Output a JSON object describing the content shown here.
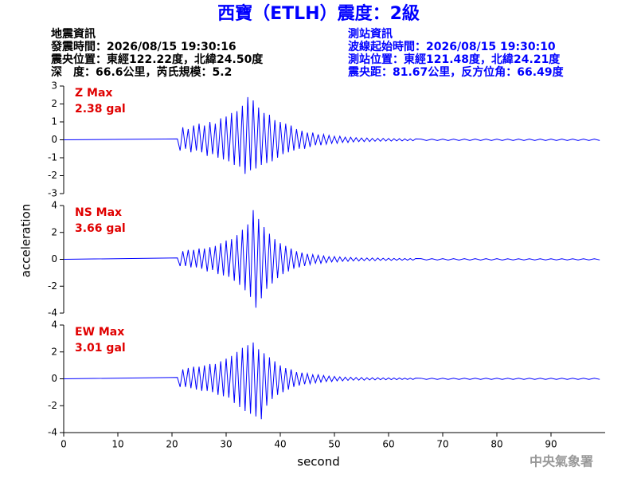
{
  "title": "西寶（ETLH）震度：2級",
  "event_info": [
    "地震資訊",
    "發震時間：2026/08/15 19:30:16",
    "震央位置：東經122.22度，北緯24.50度",
    "深　度：66.6公里，芮氏規模：5.2"
  ],
  "station_info": [
    "測站資訊",
    "波線起始時間：2026/08/15 19:30:10",
    "測站位置：東經121.48度，北緯24.21度",
    "震央距：81.67公里，反方位角：66.49度"
  ],
  "y_label": "acceleration",
  "x_label": "second",
  "watermark": "中央氣象署",
  "chart_data": [
    {
      "type": "line",
      "label": "Z Max",
      "max_label": "2.38 gal",
      "color": "#0000ff",
      "label_color": "#e00000",
      "xlim": [
        0,
        100
      ],
      "ylim": [
        -3,
        3
      ],
      "yticks": [
        -3,
        -2,
        -1,
        0,
        1,
        2,
        3
      ],
      "x": [
        0,
        21,
        21.5,
        22,
        22.5,
        23,
        23.5,
        24,
        24.5,
        25,
        25.5,
        26,
        26.5,
        27,
        27.5,
        28,
        28.5,
        29,
        29.5,
        30,
        30.5,
        31,
        31.5,
        32,
        32.5,
        33,
        33.5,
        34,
        34.5,
        35,
        35.5,
        36,
        36.5,
        37,
        37.5,
        38,
        38.5,
        39,
        39.5,
        40,
        40.5,
        41,
        41.5,
        42,
        42.5,
        43,
        43.5,
        44,
        44.5,
        45,
        45.5,
        46,
        46.5,
        47,
        47.5,
        48,
        48.5,
        49,
        49.5,
        50,
        50.5,
        51,
        51.5,
        52,
        52.5,
        53,
        53.5,
        54,
        54.5,
        55,
        55.5,
        56,
        56.5,
        57,
        57.5,
        58,
        58.5,
        59,
        59.5,
        60,
        60.5,
        61,
        61.5,
        62,
        62.5,
        63,
        63.5,
        64,
        64.5,
        65,
        66,
        67,
        68,
        69,
        70,
        71,
        72,
        73,
        74,
        75,
        76,
        77,
        78,
        79,
        80,
        81,
        82,
        83,
        84,
        85,
        86,
        87,
        88,
        89,
        90,
        91,
        92,
        93,
        94,
        95,
        96,
        97,
        98,
        99
      ],
      "values": [
        0,
        0.05,
        -0.6,
        0.7,
        -0.5,
        0.6,
        -0.7,
        0.8,
        -0.6,
        0.9,
        -0.7,
        0.8,
        -0.9,
        1.0,
        -0.8,
        0.9,
        -1.0,
        1.2,
        -1.1,
        1.3,
        -1.2,
        1.5,
        -1.4,
        1.6,
        -1.5,
        1.9,
        -1.9,
        2.38,
        -1.7,
        2.2,
        -1.6,
        1.8,
        -1.4,
        1.5,
        -1.3,
        1.4,
        -1.2,
        1.1,
        -1.0,
        1.0,
        -0.8,
        0.9,
        -0.7,
        0.8,
        -0.6,
        0.6,
        -0.5,
        0.5,
        -0.5,
        0.4,
        -0.4,
        0.4,
        -0.3,
        0.3,
        -0.3,
        0.3,
        -0.25,
        0.25,
        -0.2,
        0.2,
        -0.2,
        0.2,
        -0.15,
        0.15,
        -0.15,
        0.15,
        -0.12,
        0.12,
        -0.1,
        0.1,
        -0.1,
        0.1,
        -0.1,
        0.08,
        -0.08,
        0.08,
        -0.08,
        0.08,
        -0.07,
        0.07,
        -0.07,
        0.06,
        -0.06,
        0.06,
        -0.06,
        0.05,
        -0.05,
        0.05,
        -0.05,
        0.05,
        0.04,
        -0.04,
        0.04,
        -0.04,
        0.04,
        -0.04,
        0.04,
        -0.04,
        0.04,
        -0.04,
        0.04,
        -0.04,
        0.04,
        -0.04,
        0.04,
        -0.04,
        0.04,
        -0.04,
        0.04,
        -0.04,
        0.04,
        -0.04,
        0.04,
        -0.04,
        0.04,
        -0.04,
        0.04,
        -0.04,
        0.04,
        -0.04,
        0.04,
        -0.04,
        0.04,
        -0.04
      ]
    },
    {
      "type": "line",
      "label": "NS Max",
      "max_label": "3.66 gal",
      "color": "#0000ff",
      "label_color": "#e00000",
      "xlim": [
        0,
        100
      ],
      "ylim": [
        -4,
        4
      ],
      "yticks": [
        -4,
        -2,
        0,
        2,
        4
      ],
      "x": [
        0,
        21,
        21.5,
        22,
        22.5,
        23,
        23.5,
        24,
        24.5,
        25,
        25.5,
        26,
        26.5,
        27,
        27.5,
        28,
        28.5,
        29,
        29.5,
        30,
        30.5,
        31,
        31.5,
        32,
        32.5,
        33,
        33.5,
        34,
        34.5,
        35,
        35.5,
        36,
        36.5,
        37,
        37.5,
        38,
        38.5,
        39,
        39.5,
        40,
        40.5,
        41,
        41.5,
        42,
        42.5,
        43,
        43.5,
        44,
        44.5,
        45,
        45.5,
        46,
        46.5,
        47,
        47.5,
        48,
        48.5,
        49,
        49.5,
        50,
        50.5,
        51,
        51.5,
        52,
        52.5,
        53,
        53.5,
        54,
        54.5,
        55,
        55.5,
        56,
        56.5,
        57,
        57.5,
        58,
        58.5,
        59,
        59.5,
        60,
        60.5,
        61,
        61.5,
        62,
        62.5,
        63,
        63.5,
        64,
        64.5,
        65,
        66,
        67,
        68,
        69,
        70,
        71,
        72,
        73,
        74,
        75,
        76,
        77,
        78,
        79,
        80,
        81,
        82,
        83,
        84,
        85,
        86,
        87,
        88,
        89,
        90,
        91,
        92,
        93,
        94,
        95,
        96,
        97,
        98,
        99
      ],
      "values": [
        0,
        0.1,
        -0.5,
        0.6,
        -0.5,
        0.7,
        -0.6,
        0.7,
        -0.6,
        0.8,
        -0.7,
        0.8,
        -0.9,
        0.9,
        -0.8,
        1.0,
        -1.1,
        1.2,
        -1.2,
        1.4,
        -1.3,
        1.5,
        -1.6,
        1.8,
        -1.9,
        2.2,
        -2.3,
        2.6,
        -2.8,
        3.66,
        -3.6,
        3.0,
        -2.9,
        2.4,
        -2.2,
        1.9,
        -1.8,
        1.5,
        -1.4,
        1.2,
        -1.1,
        1.0,
        -0.9,
        0.8,
        -0.7,
        0.6,
        -0.6,
        0.5,
        -0.5,
        0.4,
        -0.4,
        0.35,
        -0.3,
        0.3,
        -0.3,
        0.25,
        -0.25,
        0.2,
        -0.2,
        0.2,
        -0.2,
        0.18,
        -0.15,
        0.15,
        -0.15,
        0.14,
        -0.12,
        0.12,
        -0.12,
        0.1,
        -0.1,
        0.1,
        -0.1,
        0.1,
        -0.1,
        0.1,
        -0.08,
        0.08,
        -0.08,
        0.08,
        -0.08,
        0.07,
        -0.07,
        0.07,
        -0.07,
        0.06,
        -0.06,
        0.06,
        -0.06,
        0.06,
        0.05,
        -0.05,
        0.05,
        -0.05,
        0.05,
        -0.05,
        0.05,
        -0.05,
        0.05,
        -0.05,
        0.05,
        -0.05,
        0.05,
        -0.05,
        0.05,
        -0.05,
        0.04,
        -0.04,
        0.04,
        -0.04,
        0.04,
        -0.04,
        0.04,
        -0.04,
        0.04,
        -0.04,
        0.04,
        -0.04,
        0.04,
        -0.04,
        0.04,
        -0.04,
        0.04,
        -0.04
      ]
    },
    {
      "type": "line",
      "label": "EW Max",
      "max_label": "3.01 gal",
      "color": "#0000ff",
      "label_color": "#e00000",
      "xlim": [
        0,
        100
      ],
      "ylim": [
        -4,
        4
      ],
      "yticks": [
        -4,
        -2,
        0,
        2,
        4
      ],
      "xticks": [
        0,
        10,
        20,
        30,
        40,
        50,
        60,
        70,
        80,
        90
      ],
      "x": [
        0,
        21,
        21.5,
        22,
        22.5,
        23,
        23.5,
        24,
        24.5,
        25,
        25.5,
        26,
        26.5,
        27,
        27.5,
        28,
        28.5,
        29,
        29.5,
        30,
        30.5,
        31,
        31.5,
        32,
        32.5,
        33,
        33.5,
        34,
        34.5,
        35,
        35.5,
        36,
        36.5,
        37,
        37.5,
        38,
        38.5,
        39,
        39.5,
        40,
        40.5,
        41,
        41.5,
        42,
        42.5,
        43,
        43.5,
        44,
        44.5,
        45,
        45.5,
        46,
        46.5,
        47,
        47.5,
        48,
        48.5,
        49,
        49.5,
        50,
        50.5,
        51,
        51.5,
        52,
        52.5,
        53,
        53.5,
        54,
        54.5,
        55,
        55.5,
        56,
        56.5,
        57,
        57.5,
        58,
        58.5,
        59,
        59.5,
        60,
        60.5,
        61,
        61.5,
        62,
        62.5,
        63,
        63.5,
        64,
        64.5,
        65,
        66,
        67,
        68,
        69,
        70,
        71,
        72,
        73,
        74,
        75,
        76,
        77,
        78,
        79,
        80,
        81,
        82,
        83,
        84,
        85,
        86,
        87,
        88,
        89,
        90,
        91,
        92,
        93,
        94,
        95,
        96,
        97,
        98,
        99
      ],
      "values": [
        0,
        0.1,
        -0.6,
        0.7,
        -0.6,
        0.8,
        -0.7,
        0.9,
        -0.8,
        0.9,
        -0.9,
        1.0,
        -0.9,
        1.1,
        -1.0,
        1.1,
        -1.2,
        1.3,
        -1.3,
        1.5,
        -1.4,
        1.7,
        -1.8,
        2.0,
        -2.1,
        2.3,
        -2.4,
        2.5,
        -2.6,
        2.7,
        -2.8,
        2.2,
        -3.01,
        1.9,
        -2.0,
        1.6,
        -1.5,
        1.3,
        -1.2,
        1.0,
        -1.0,
        0.8,
        -0.8,
        0.7,
        -0.6,
        0.5,
        -0.5,
        0.45,
        -0.4,
        0.4,
        -0.35,
        0.3,
        -0.3,
        0.3,
        -0.25,
        0.25,
        -0.2,
        0.2,
        -0.2,
        0.18,
        -0.15,
        0.15,
        -0.15,
        0.12,
        -0.12,
        0.12,
        -0.1,
        0.1,
        -0.1,
        0.1,
        -0.1,
        0.08,
        -0.08,
        0.08,
        -0.08,
        0.08,
        -0.07,
        0.07,
        -0.07,
        0.07,
        -0.06,
        0.06,
        -0.06,
        0.06,
        -0.05,
        0.05,
        -0.05,
        0.05,
        -0.05,
        0.05,
        0.04,
        -0.04,
        0.04,
        -0.04,
        0.04,
        -0.04,
        0.04,
        -0.04,
        0.04,
        -0.04,
        0.04,
        -0.04,
        0.04,
        -0.04,
        0.04,
        -0.04,
        0.04,
        -0.04,
        0.04,
        -0.04,
        0.04,
        -0.04,
        0.04,
        -0.04,
        0.04,
        -0.04,
        0.04,
        -0.04,
        0.04,
        -0.04,
        0.04,
        -0.04,
        0.04,
        -0.04
      ]
    }
  ]
}
